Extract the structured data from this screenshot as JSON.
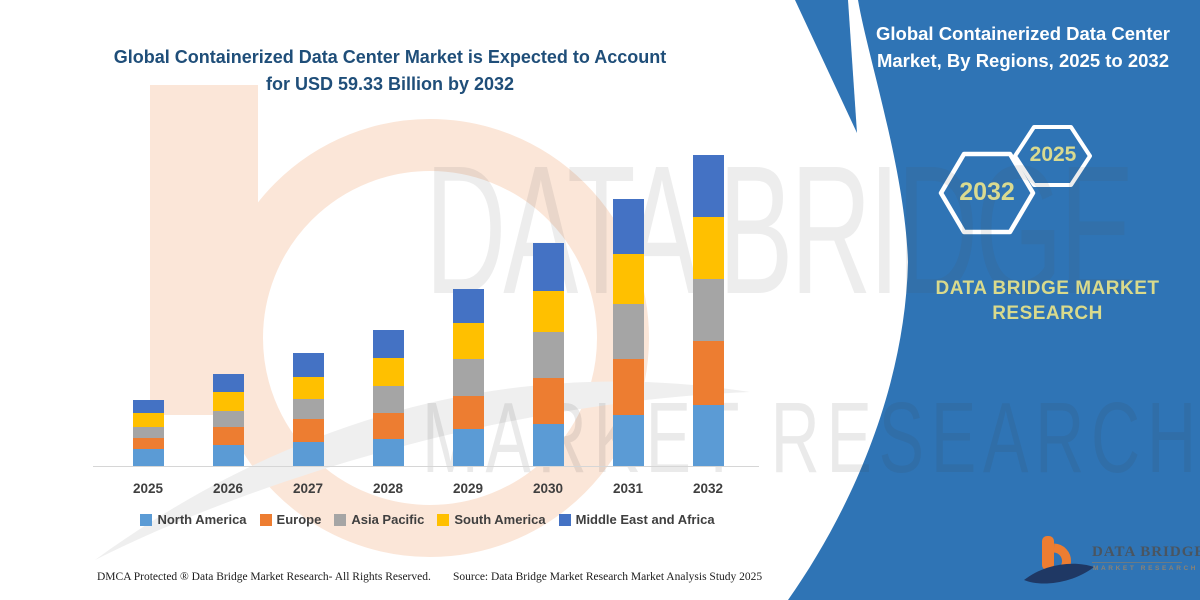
{
  "header": {
    "title_line1": "Global Containerized Data Center Market is Expected to Account",
    "title_line2": "for USD 59.33 Billion by 2032"
  },
  "panel": {
    "title_line1": "Global Containerized Data Center",
    "title_line2": "Market, By Regions, 2025 to 2032",
    "hexagon_large_label": "2032",
    "hexagon_small_label": "2025",
    "brand_line1": "DATA BRIDGE MARKET",
    "brand_line2": "RESEARCH",
    "bg_color": "#2F74B5",
    "accent_text_color": "#D9DA90"
  },
  "watermark": {
    "line1": "DATA BRIDGE",
    "line2": "MARKET RESEARCH"
  },
  "footer": {
    "dmca": "DMCA Protected ® Data Bridge Market Research-  All Rights Reserved.",
    "source": "Source: Data Bridge Market Research  Market Analysis Study 2025"
  },
  "logo": {
    "title": "DATA BRIDGE",
    "subtitle": "MARKET RESEARCH"
  },
  "chart_data": {
    "type": "bar",
    "stacked": true,
    "title": "Global Containerized Data Center Market is Expected to Account for USD 59.33 Billion by 2032",
    "unit": "USD Billion",
    "categories": [
      "2025",
      "2026",
      "2027",
      "2028",
      "2029",
      "2030",
      "2031",
      "2032"
    ],
    "series": [
      {
        "name": "North America",
        "color": "#5B9BD5",
        "values": [
          3.24,
          4.01,
          4.58,
          5.15,
          7.06,
          8.01,
          9.73,
          11.64
        ]
      },
      {
        "name": "Europe",
        "color": "#ED7D31",
        "values": [
          2.1,
          3.43,
          4.39,
          4.96,
          6.29,
          8.77,
          10.68,
          12.21
        ]
      },
      {
        "name": "Asia Pacific",
        "color": "#A5A5A5",
        "values": [
          2.1,
          3.05,
          3.82,
          5.15,
          7.06,
          8.77,
          10.49,
          11.83
        ]
      },
      {
        "name": "South America",
        "color": "#FFC000",
        "values": [
          2.67,
          3.62,
          4.2,
          5.34,
          6.87,
          7.82,
          9.54,
          11.83
        ]
      },
      {
        "name": "Middle East and Africa",
        "color": "#4472C4",
        "values": [
          2.48,
          3.43,
          4.58,
          5.34,
          6.49,
          9.16,
          10.49,
          11.83
        ]
      }
    ],
    "totals": [
      12.59,
      17.55,
      21.55,
      25.94,
      33.76,
      42.54,
      50.93,
      59.33
    ],
    "ylim": [
      0,
      62
    ],
    "grid": false,
    "legend_position": "bottom",
    "xlabel": "",
    "ylabel": ""
  }
}
